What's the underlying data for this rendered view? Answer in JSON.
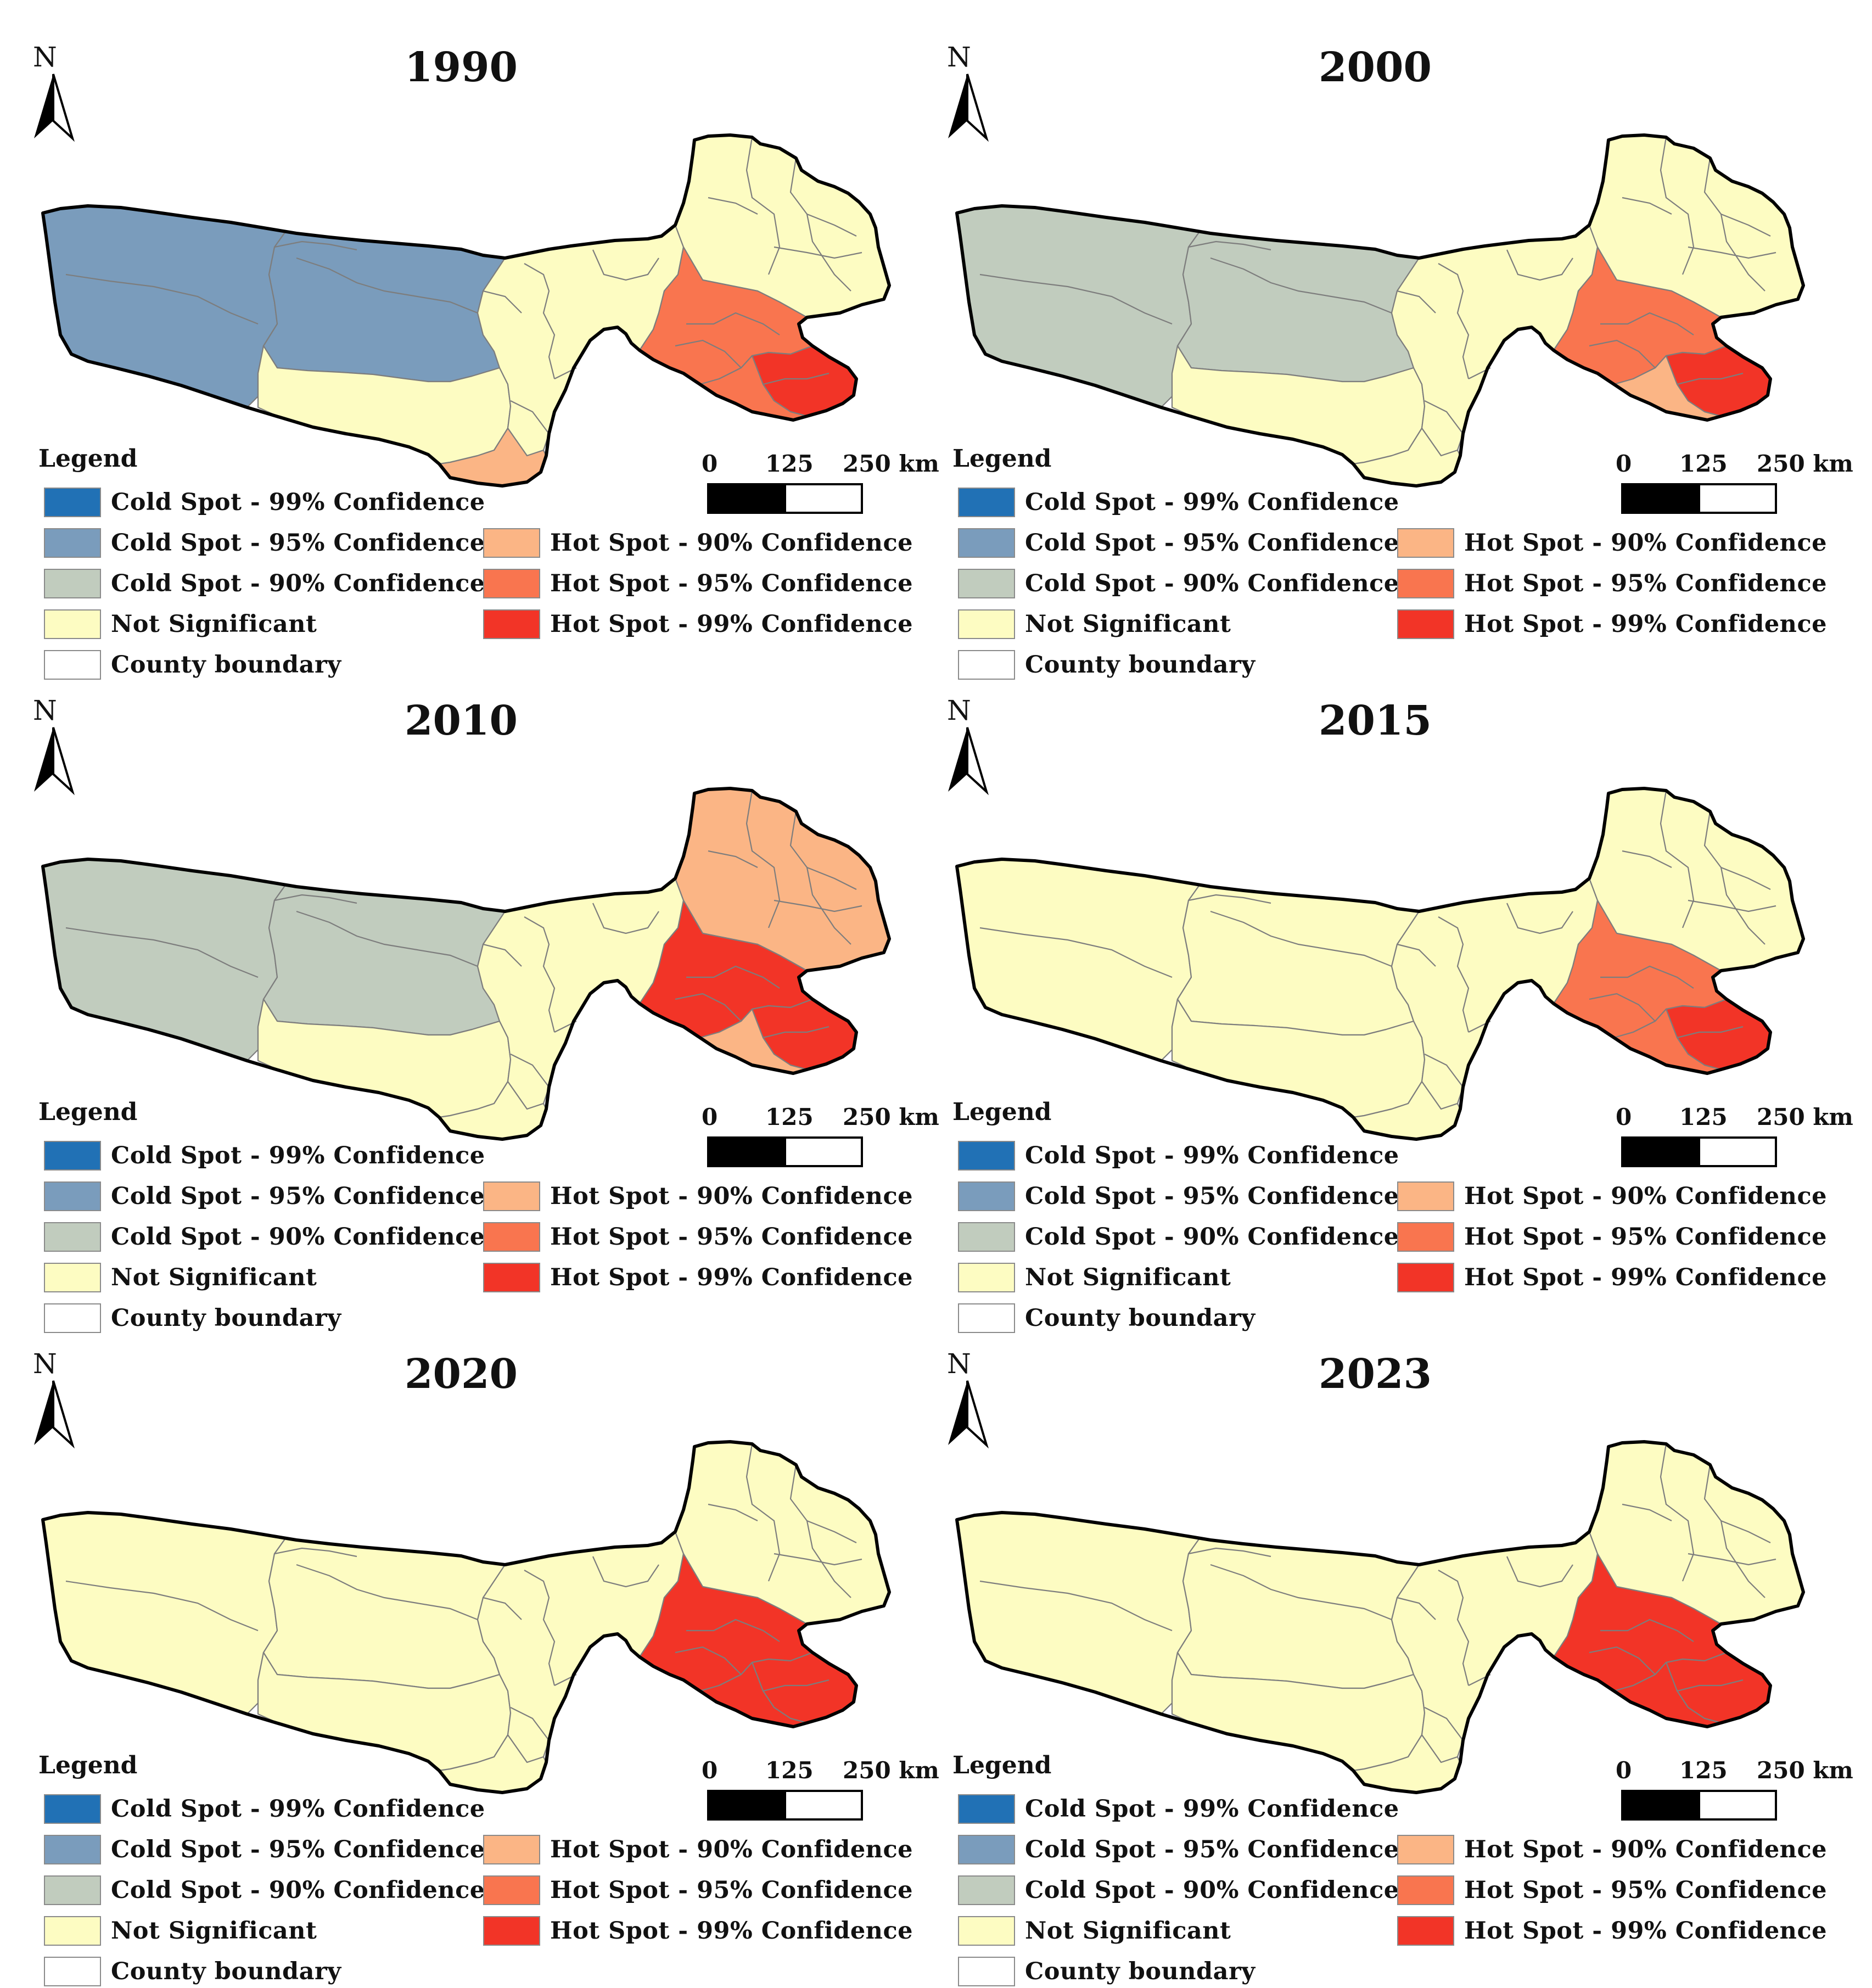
{
  "colors": {
    "cold99": "#2171b5",
    "cold95": "#7a9cbc",
    "cold90": "#c1ccbe",
    "notsig": "#fdfcc2",
    "hot90": "#fbb585",
    "hot95": "#f9754f",
    "hot99": "#f23427",
    "outline": "#000000",
    "county": "#7d7d7d"
  },
  "north_label": "N",
  "legend": {
    "title": "Legend",
    "items": [
      {
        "key": "cold99",
        "label": "Cold Spot - 99% Confidence"
      },
      {
        "key": "cold95",
        "label": "Cold Spot - 95% Confidence"
      },
      {
        "key": "cold90",
        "label": "Cold Spot - 90% Confidence"
      },
      {
        "key": "notsig",
        "label": "Not Significant"
      },
      {
        "key": "county",
        "label": "County boundary"
      },
      {
        "key": "hot90",
        "label": "Hot Spot - 90% Confidence"
      },
      {
        "key": "hot95",
        "label": "Hot Spot - 95% Confidence"
      },
      {
        "key": "hot99",
        "label": "Hot Spot - 99% Confidence"
      }
    ]
  },
  "scale_bar": {
    "labels": [
      "0",
      "125",
      "250 km"
    ]
  },
  "panels": [
    {
      "year": "1990",
      "classes": {
        "west": "cold95",
        "centralnorth": "cold95",
        "centralsouth": "notsig",
        "eastmid": "notsig",
        "southtip": "hot90",
        "nebasin": "notsig",
        "sehot": "hot95",
        "secore": "hot99",
        "selow": "hot95"
      }
    },
    {
      "year": "2000",
      "classes": {
        "west": "cold90",
        "centralnorth": "cold90",
        "centralsouth": "notsig",
        "eastmid": "notsig",
        "southtip": "notsig",
        "nebasin": "notsig",
        "sehot": "hot95",
        "secore": "hot99",
        "selow": "hot90"
      }
    },
    {
      "year": "2010",
      "classes": {
        "west": "cold90",
        "centralnorth": "cold90",
        "centralsouth": "notsig",
        "eastmid": "notsig",
        "southtip": "notsig",
        "nebasin": "hot90",
        "sehot": "hot99",
        "secore": "hot99",
        "selow": "hot90"
      }
    },
    {
      "year": "2015",
      "classes": {
        "west": "notsig",
        "centralnorth": "notsig",
        "centralsouth": "notsig",
        "eastmid": "notsig",
        "southtip": "notsig",
        "nebasin": "notsig",
        "sehot": "hot95",
        "secore": "hot99",
        "selow": "hot95"
      }
    },
    {
      "year": "2020",
      "classes": {
        "west": "notsig",
        "centralnorth": "notsig",
        "centralsouth": "notsig",
        "eastmid": "notsig",
        "southtip": "notsig",
        "nebasin": "notsig",
        "sehot": "hot99",
        "secore": "hot99",
        "selow": "hot99"
      }
    },
    {
      "year": "2023",
      "classes": {
        "west": "notsig",
        "centralnorth": "notsig",
        "centralsouth": "notsig",
        "eastmid": "notsig",
        "southtip": "notsig",
        "nebasin": "notsig",
        "sehot": "hot99",
        "secore": "hot99",
        "selow": "hot99"
      }
    }
  ]
}
